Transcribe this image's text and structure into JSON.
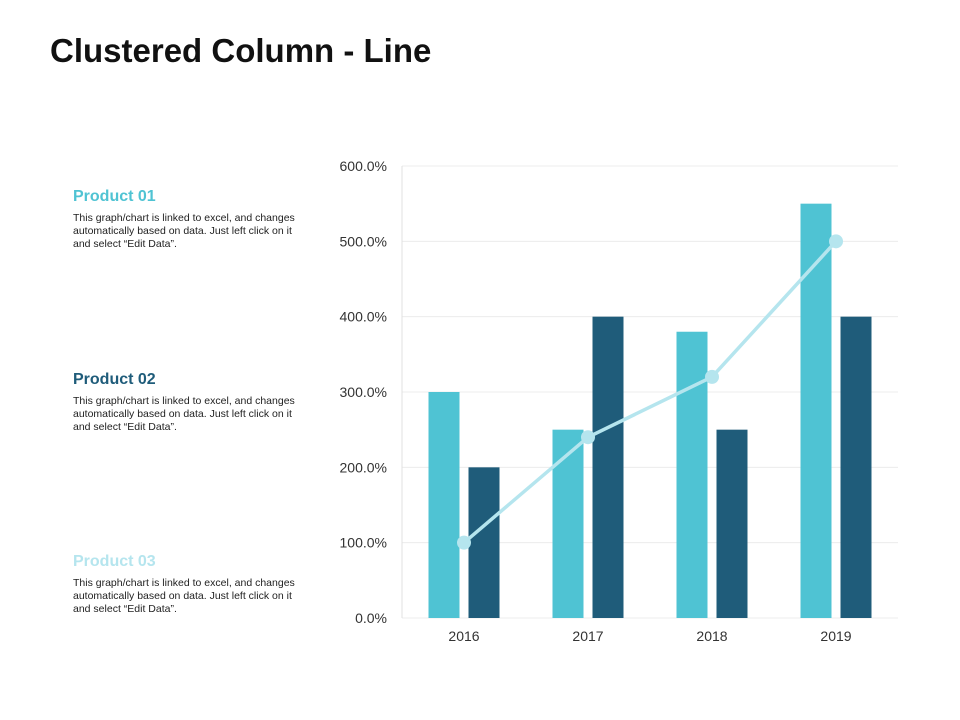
{
  "page": {
    "title": "Clustered Column - Line"
  },
  "legend": [
    {
      "title": "Product 01",
      "color": "#4fc3d3",
      "description": "This graph/chart is linked to excel, and changes automatically based on data. Just left click on it and select “Edit Data”."
    },
    {
      "title": "Product 02",
      "color": "#1f5c7a",
      "description": "This graph/chart is linked to excel, and changes automatically based on data. Just left click on it and select “Edit Data”."
    },
    {
      "title": "Product 03",
      "color": "#b5e5ee",
      "description": "This graph/chart is linked to excel, and changes automatically based on data. Just left click on it and select “Edit Data”."
    }
  ],
  "chart_data": {
    "type": "bar",
    "title": "",
    "xlabel": "",
    "ylabel": "",
    "categories": [
      "2016",
      "2017",
      "2018",
      "2019"
    ],
    "ylim": [
      0,
      600
    ],
    "yticks": [
      0,
      100,
      200,
      300,
      400,
      500,
      600
    ],
    "ytick_labels": [
      "0.0%",
      "100.0%",
      "200.0%",
      "300.0%",
      "400.0%",
      "500.0%",
      "600.0%"
    ],
    "grid": true,
    "series": [
      {
        "name": "Product 01",
        "type": "bar",
        "color": "#4fc3d3",
        "values": [
          300,
          250,
          380,
          550
        ]
      },
      {
        "name": "Product 02",
        "type": "bar",
        "color": "#1f5c7a",
        "values": [
          200,
          400,
          250,
          400
        ]
      },
      {
        "name": "Product 03",
        "type": "line",
        "color": "#b5e5ee",
        "values": [
          100,
          240,
          320,
          500
        ]
      }
    ]
  }
}
